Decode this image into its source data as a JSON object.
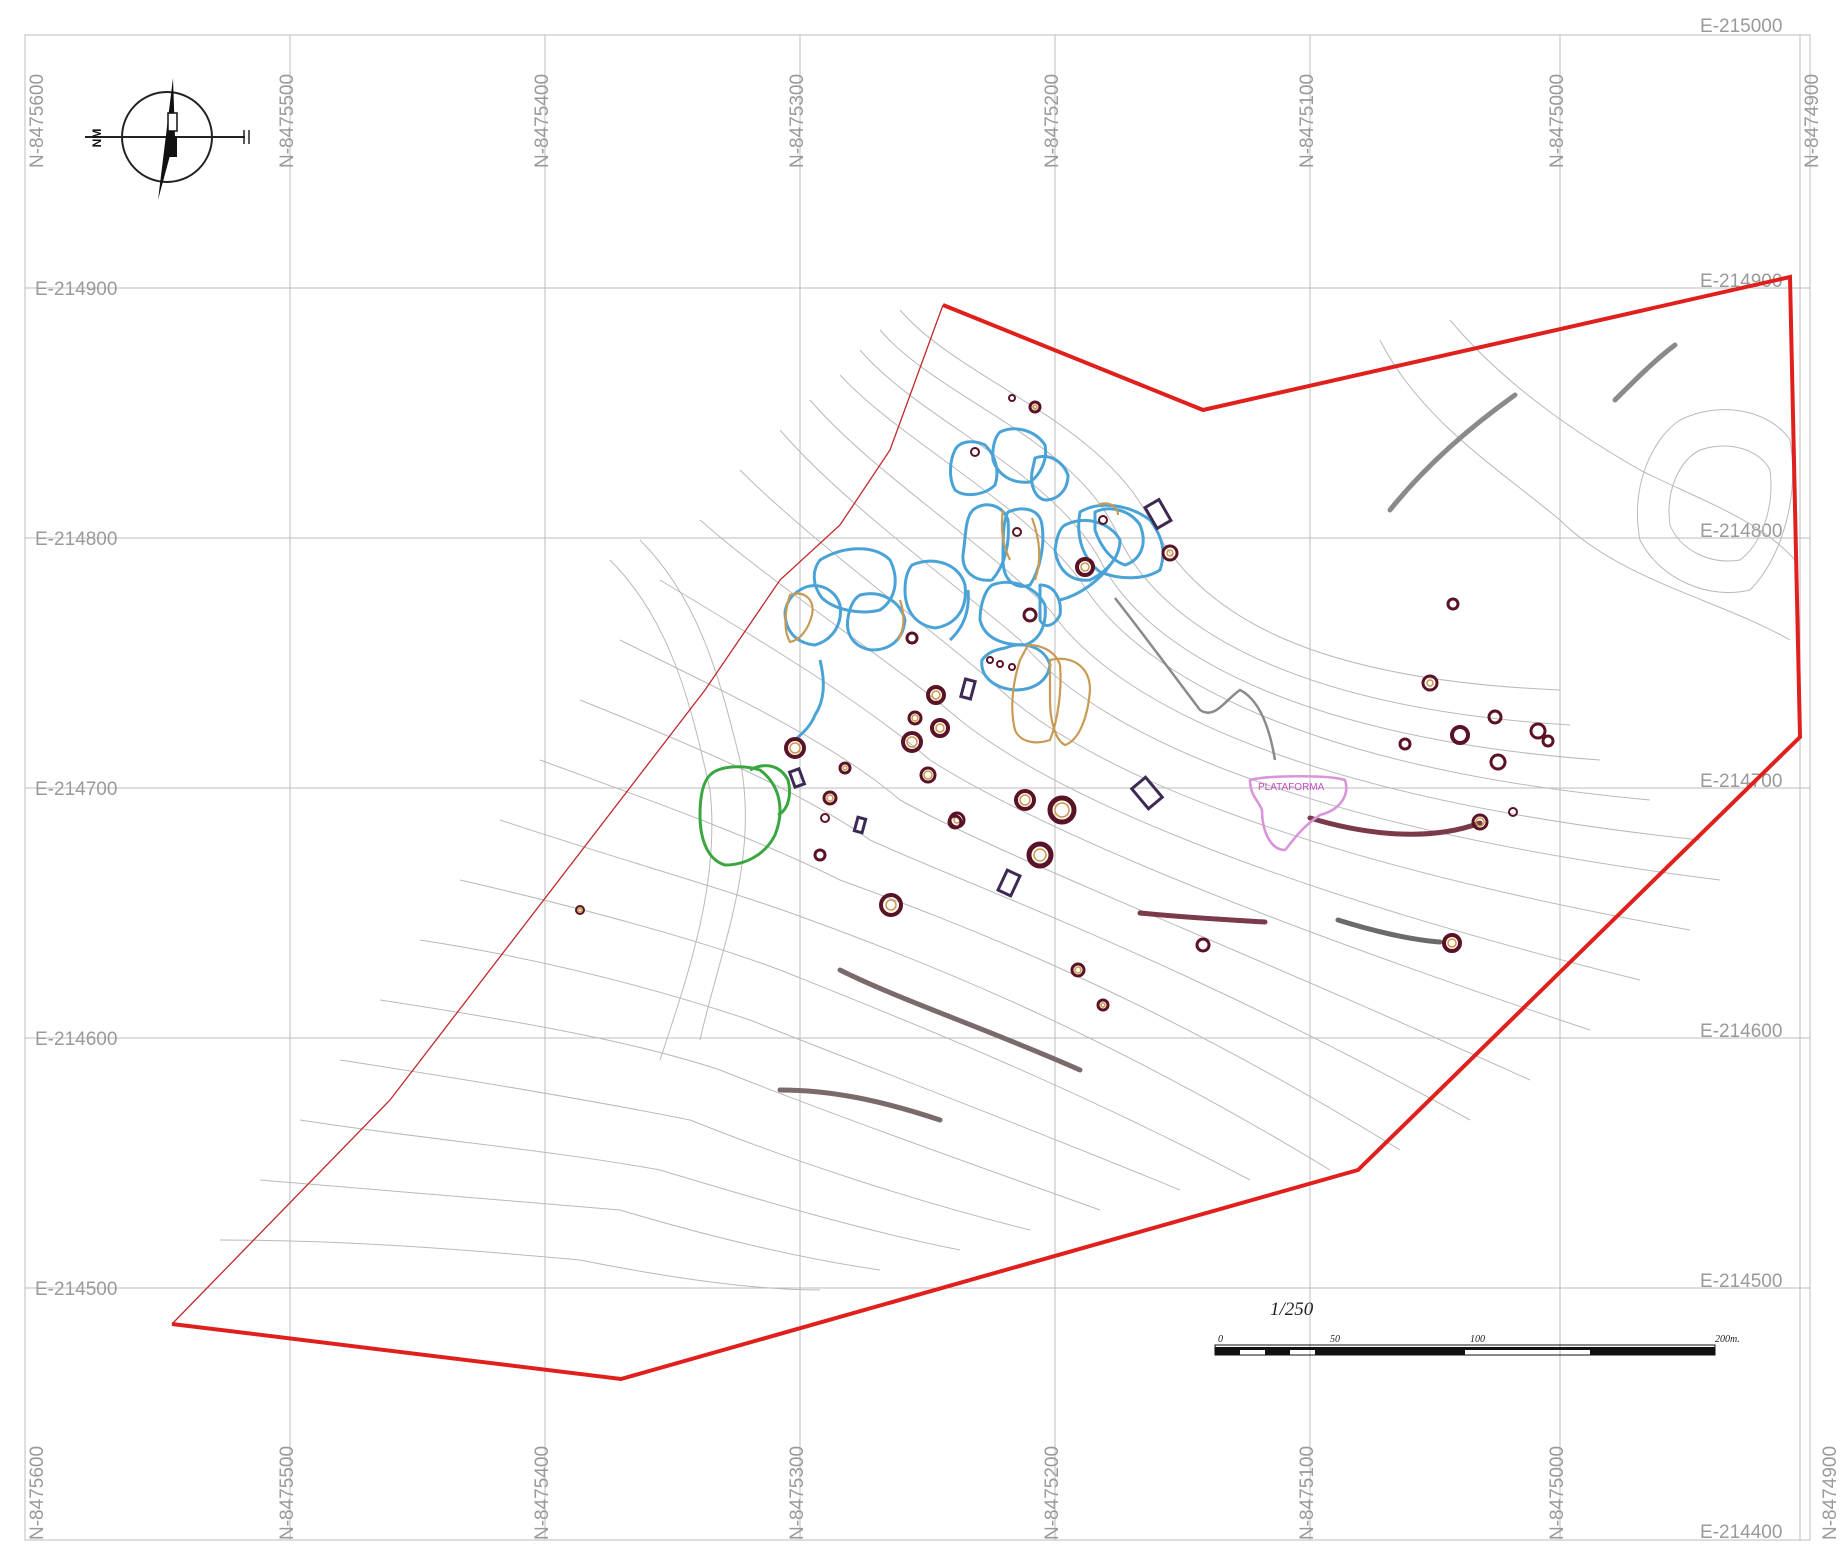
{
  "map": {
    "north_label": "NM",
    "northing_labels": [
      "N-8475600",
      "N-8475500",
      "N-8475400",
      "N-8475300",
      "N-8475200",
      "N-8475100",
      "N-8475000",
      "N-8474900"
    ],
    "easting_labels_left": [
      "E-214900",
      "E-214800",
      "E-214700",
      "E-214600",
      "E-214500"
    ],
    "easting_labels_right": [
      "E-215000",
      "E-214900",
      "E-214800",
      "E-214700",
      "E-214600",
      "E-214500",
      "E-214400"
    ],
    "scale": {
      "ratio": "1/250",
      "ticks": [
        "0",
        "50",
        "100",
        "200m."
      ]
    },
    "annotation": "PLATAFORMA",
    "colors": {
      "boundary": "#e0201c",
      "grid": "#bdbdbd",
      "contour": "#b9b9b9",
      "structure_blue": "#4aa3d6",
      "structure_tan": "#c89b54",
      "structure_green": "#3aa640",
      "structure_pink": "#d995d9",
      "circle_dark": "#5a1324",
      "circle_fill": "#d09548"
    }
  }
}
